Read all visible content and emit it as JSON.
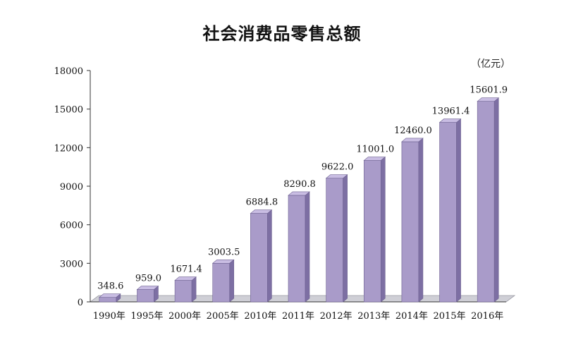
{
  "chart_data": {
    "type": "bar",
    "title": "社会消费品零售总额",
    "unit": "（亿元）",
    "categories": [
      "1990年",
      "1995年",
      "2000年",
      "2005年",
      "2010年",
      "2011年",
      "2012年",
      "2013年",
      "2014年",
      "2015年",
      "2016年"
    ],
    "values": [
      348.6,
      959.0,
      1671.4,
      3003.5,
      6884.8,
      8290.8,
      9622.0,
      11001.0,
      12460.0,
      13961.4,
      15601.9
    ],
    "value_labels": [
      "348.6",
      "959.0",
      "1671.4",
      "3003.5",
      "6884.8",
      "8290.8",
      "9622.0",
      "11001.0",
      "12460.0",
      "13961.4",
      "15601.9"
    ],
    "yticks": [
      0,
      3000,
      6000,
      9000,
      12000,
      15000,
      18000
    ],
    "ylim": [
      0,
      18000
    ],
    "bar_color": "#a99bc9",
    "bar_side_color": "#7d6fa3",
    "bar_top_color": "#c9bde3",
    "floor_color": "#cfcfd6",
    "grid": false,
    "legend": "none"
  }
}
